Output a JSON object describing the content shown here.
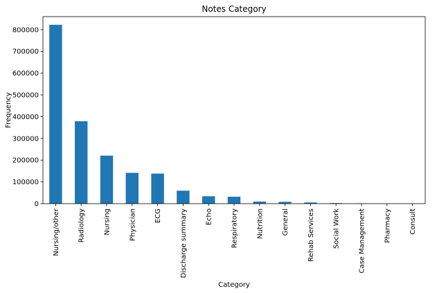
{
  "chart_data": {
    "type": "bar",
    "title": "Notes Category",
    "xlabel": "Category",
    "ylabel": "Frequency",
    "categories": [
      "Nursing/other",
      "Radiology",
      "Nursing",
      "Physician",
      "ECG",
      "Discharge summary",
      "Echo",
      "Respiratory",
      "Nutrition",
      "General",
      "Rehab Services",
      "Social Work",
      "Case Management",
      "Pharmacy",
      "Consult"
    ],
    "values": [
      822497,
      378920,
      220758,
      141624,
      138190,
      59652,
      34037,
      31739,
      9418,
      8301,
      5431,
      2670,
      967,
      103,
      98
    ],
    "ylim": [
      0,
      860000
    ],
    "yticks": [
      0,
      100000,
      200000,
      300000,
      400000,
      500000,
      600000,
      700000,
      800000
    ],
    "ytick_labels": [
      "0",
      "100000",
      "200000",
      "300000",
      "400000",
      "500000",
      "600000",
      "700000",
      "800000"
    ],
    "bar_color": "#1f77b4",
    "grid": false,
    "legend": "none"
  }
}
